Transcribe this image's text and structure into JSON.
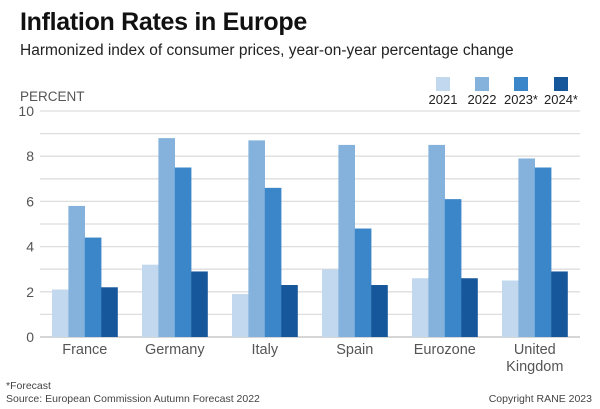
{
  "chart_data": {
    "type": "bar",
    "title": "Inflation Rates in Europe",
    "subtitle": "Harmonized index of consumer prices, year-on-year percentage change",
    "ylabel": "PERCENT",
    "xlabel": "",
    "ylim": [
      0,
      10
    ],
    "yticks": [
      "0",
      "2",
      "4",
      "6",
      "8",
      "10"
    ],
    "ytick_values": [
      0,
      2,
      4,
      6,
      8,
      10
    ],
    "minor_gridlines": [
      1,
      3,
      5,
      7,
      9
    ],
    "grid": true,
    "legend_position": "top-right",
    "categories": [
      [
        "France"
      ],
      [
        "Germany"
      ],
      [
        "Italy"
      ],
      [
        "Spain"
      ],
      [
        "Eurozone"
      ],
      [
        "United",
        "Kingdom"
      ]
    ],
    "series": [
      {
        "name": "2021",
        "color": "#c2d8ee",
        "values": [
          2.1,
          3.2,
          1.9,
          3.0,
          2.6,
          2.5
        ]
      },
      {
        "name": "2022",
        "color": "#84b2dc",
        "values": [
          5.8,
          8.8,
          8.7,
          8.5,
          8.5,
          7.9
        ]
      },
      {
        "name": "2023*",
        "color": "#3a86c8",
        "values": [
          4.4,
          7.5,
          6.6,
          4.8,
          6.1,
          7.5
        ]
      },
      {
        "name": "2024*",
        "color": "#16569a",
        "values": [
          2.2,
          2.9,
          2.3,
          2.3,
          2.6,
          2.9
        ]
      }
    ],
    "footnote": "*Forecast",
    "source": "Source: European Commission Autumn Forecast 2022",
    "copyright": "Copyright RANE 2023"
  }
}
